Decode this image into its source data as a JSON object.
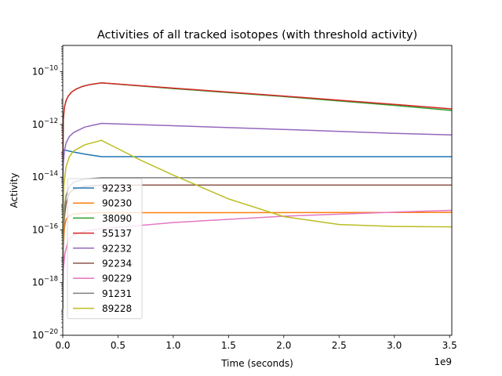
{
  "chart_data": {
    "type": "line",
    "title": "Activities of all tracked isotopes (with threshold activity)",
    "xlabel": "Time (seconds)",
    "ylabel": "Activity",
    "x_offset_label": "1e9",
    "yscale": "log",
    "xlim": [
      0,
      3520000000.0
    ],
    "ylim": [
      1e-20,
      1e-09
    ],
    "x_ticks": [
      0,
      500000000.0,
      1000000000.0,
      1500000000.0,
      2000000000.0,
      2500000000.0,
      3000000000.0,
      3500000000.0
    ],
    "x_tick_labels": [
      "0.0",
      "0.5",
      "1.0",
      "1.5",
      "2.0",
      "2.5",
      "3.0",
      "3.5"
    ],
    "y_tick_exponents": [
      -20,
      -18,
      -16,
      -14,
      -12,
      -10
    ],
    "grid": false,
    "legend_position": "lower-left",
    "series": [
      {
        "name": "92233",
        "color": "#1f77b4",
        "points": [
          [
            0,
            1.1e-13
          ],
          [
            100000000.0,
            9e-14
          ],
          [
            200000000.0,
            7.5e-14
          ],
          [
            350000000.0,
            6e-14
          ],
          [
            1000000000.0,
            6e-14
          ],
          [
            3520000000.0,
            6e-14
          ]
        ]
      },
      {
        "name": "90230",
        "color": "#ff7f0e",
        "points": [
          [
            0,
            1e-19
          ],
          [
            5000000.0,
            2e-17
          ],
          [
            15000000.0,
            1.2e-16
          ],
          [
            30000000.0,
            2.5e-16
          ],
          [
            60000000.0,
            3.5e-16
          ],
          [
            100000000.0,
            4e-16
          ],
          [
            200000000.0,
            4.3e-16
          ],
          [
            350000000.0,
            4.5e-16
          ],
          [
            1000000000.0,
            4.5e-16
          ],
          [
            3520000000.0,
            4.6e-16
          ]
        ]
      },
      {
        "name": "38090",
        "color": "#2ca02c",
        "points": [
          [
            0,
            1e-14
          ],
          [
            5000000.0,
            1.5e-12
          ],
          [
            15000000.0,
            4.5e-12
          ],
          [
            30000000.0,
            8e-12
          ],
          [
            50000000.0,
            1.2e-11
          ],
          [
            80000000.0,
            1.7e-11
          ],
          [
            120000000.0,
            2.2e-11
          ],
          [
            180000000.0,
            2.8e-11
          ],
          [
            250000000.0,
            3.3e-11
          ],
          [
            350000000.0,
            3.8e-11
          ],
          [
            1000000000.0,
            2.3e-11
          ],
          [
            2000000000.0,
            1.15e-11
          ],
          [
            3000000000.0,
            5.3e-12
          ],
          [
            3520000000.0,
            3.4e-12
          ]
        ]
      },
      {
        "name": "55137",
        "color": "#d62728",
        "points": [
          [
            0,
            1e-14
          ],
          [
            5000000.0,
            1.5e-12
          ],
          [
            15000000.0,
            4.5e-12
          ],
          [
            30000000.0,
            8e-12
          ],
          [
            50000000.0,
            1.2e-11
          ],
          [
            80000000.0,
            1.7e-11
          ],
          [
            120000000.0,
            2.2e-11
          ],
          [
            180000000.0,
            2.8e-11
          ],
          [
            250000000.0,
            3.3e-11
          ],
          [
            350000000.0,
            3.8e-11
          ],
          [
            1000000000.0,
            2.4e-11
          ],
          [
            2000000000.0,
            1.2e-11
          ],
          [
            3000000000.0,
            5.8e-12
          ],
          [
            3520000000.0,
            3.9e-12
          ]
        ]
      },
      {
        "name": "92232",
        "color": "#9467bd",
        "points": [
          [
            0,
            1e-15
          ],
          [
            5000000.0,
            3e-14
          ],
          [
            15000000.0,
            1e-13
          ],
          [
            30000000.0,
            2e-13
          ],
          [
            60000000.0,
            3.5e-13
          ],
          [
            100000000.0,
            5e-13
          ],
          [
            200000000.0,
            8e-13
          ],
          [
            350000000.0,
            1.1e-12
          ],
          [
            1000000000.0,
            9e-13
          ],
          [
            2000000000.0,
            6.5e-13
          ],
          [
            3000000000.0,
            4.6e-13
          ],
          [
            3520000000.0,
            4e-13
          ]
        ]
      },
      {
        "name": "92234",
        "color": "#8c564b",
        "points": [
          [
            0,
            1e-19
          ],
          [
            5000000.0,
            5e-17
          ],
          [
            15000000.0,
            3e-16
          ],
          [
            30000000.0,
            1e-15
          ],
          [
            60000000.0,
            2.5e-15
          ],
          [
            100000000.0,
            3.5e-15
          ],
          [
            200000000.0,
            4.5e-15
          ],
          [
            350000000.0,
            5e-15
          ],
          [
            1000000000.0,
            5e-15
          ],
          [
            3520000000.0,
            5e-15
          ]
        ]
      },
      {
        "name": "90229",
        "color": "#e377c2",
        "points": [
          [
            0,
            1e-19
          ],
          [
            5000000.0,
            3e-18
          ],
          [
            20000000.0,
            1.3e-17
          ],
          [
            50000000.0,
            4e-17
          ],
          [
            100000000.0,
            6.5e-17
          ],
          [
            200000000.0,
            9e-17
          ],
          [
            350000000.0,
            1.1e-16
          ],
          [
            1000000000.0,
            1.9e-16
          ],
          [
            2000000000.0,
            3.3e-16
          ],
          [
            3000000000.0,
            4.7e-16
          ],
          [
            3520000000.0,
            5.5e-16
          ]
        ]
      },
      {
        "name": "91231",
        "color": "#7f7f7f",
        "points": [
          [
            0,
            1e-19
          ],
          [
            5000000.0,
            1e-16
          ],
          [
            15000000.0,
            6e-16
          ],
          [
            30000000.0,
            2e-15
          ],
          [
            60000000.0,
            4.5e-15
          ],
          [
            100000000.0,
            6.5e-15
          ],
          [
            200000000.0,
            8.5e-15
          ],
          [
            350000000.0,
            9.5e-15
          ],
          [
            1000000000.0,
            9.5e-15
          ],
          [
            3520000000.0,
            9.5e-15
          ]
        ]
      },
      {
        "name": "89228",
        "color": "#bcbd22",
        "points": [
          [
            0,
            1e-17
          ],
          [
            10000000.0,
            5e-15
          ],
          [
            30000000.0,
            2.5e-14
          ],
          [
            60000000.0,
            6e-14
          ],
          [
            100000000.0,
            1e-13
          ],
          [
            200000000.0,
            1.7e-13
          ],
          [
            350000000.0,
            2.5e-13
          ],
          [
            500000000.0,
            1.2e-13
          ],
          [
            700000000.0,
            4.5e-14
          ],
          [
            1000000000.0,
            1.2e-14
          ],
          [
            1500000000.0,
            1.5e-15
          ],
          [
            2000000000.0,
            3.2e-16
          ],
          [
            2500000000.0,
            1.6e-16
          ],
          [
            3000000000.0,
            1.35e-16
          ],
          [
            3520000000.0,
            1.3e-16
          ]
        ]
      }
    ]
  }
}
